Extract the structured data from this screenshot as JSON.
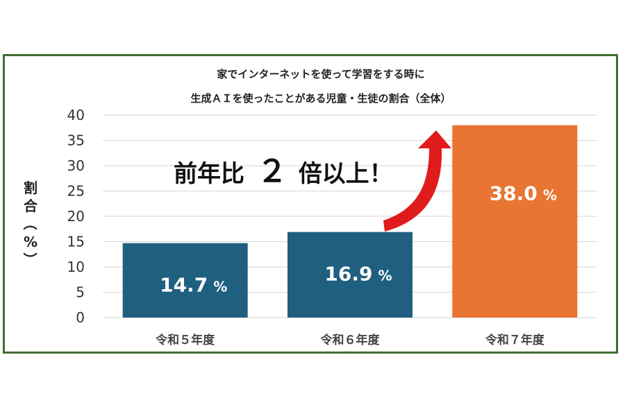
{
  "chart_data": {
    "type": "bar",
    "title_lines": [
      "家でインターネットを使って学習をする時に",
      "生成ＡＩを使ったことがある児童・生徒の割合（全体）"
    ],
    "categories": [
      "令和５年度",
      "令和６年度",
      "令和７年度"
    ],
    "values": [
      14.7,
      16.9,
      38.0
    ],
    "value_labels": [
      "14.7",
      "16.9",
      "38.0"
    ],
    "value_unit": "%",
    "colors": [
      "#1f5f80",
      "#1f5f80",
      "#e87531"
    ],
    "ylabel": "割合（%）",
    "ylim": [
      0,
      40
    ],
    "yticks": [
      0,
      5,
      10,
      15,
      20,
      25,
      30,
      35,
      40
    ],
    "grid": true,
    "callout": {
      "prefix": "前年比",
      "number": "２",
      "suffix": "倍以上！"
    },
    "arrow_color": "#e01b1b"
  }
}
